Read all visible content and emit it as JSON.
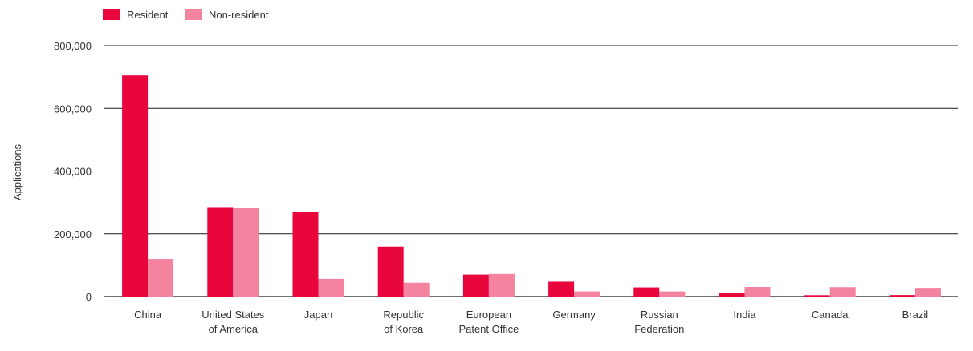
{
  "chart_data": {
    "type": "bar",
    "ylabel": "Applications",
    "xlabel": "",
    "ylim": [
      0,
      800000
    ],
    "y_ticks": [
      0,
      200000,
      400000,
      600000,
      800000
    ],
    "y_tick_labels": [
      "0",
      "200,000",
      "400,000",
      "600,000",
      "800,000"
    ],
    "grid": true,
    "legend_position": "top-left",
    "categories": [
      [
        "China"
      ],
      [
        "United States",
        "of America"
      ],
      [
        "Japan"
      ],
      [
        "Republic",
        "of Korea"
      ],
      [
        "European",
        "Patent Office"
      ],
      [
        "Germany"
      ],
      [
        "Russian",
        "Federation"
      ],
      [
        "India"
      ],
      [
        "Canada"
      ],
      [
        "Brazil"
      ]
    ],
    "series": [
      {
        "name": "Resident",
        "color": "#e8063c",
        "values": [
          704936,
          285096,
          269637,
          159084,
          70000,
          47384,
          29269,
          12071,
          4350,
          4779
        ]
      },
      {
        "name": "Non-resident",
        "color": "#f483a0",
        "values": [
          120000,
          283781,
          56526,
          44115,
          72000,
          16500,
          16318,
          30713,
          30060,
          25300
        ]
      }
    ]
  }
}
